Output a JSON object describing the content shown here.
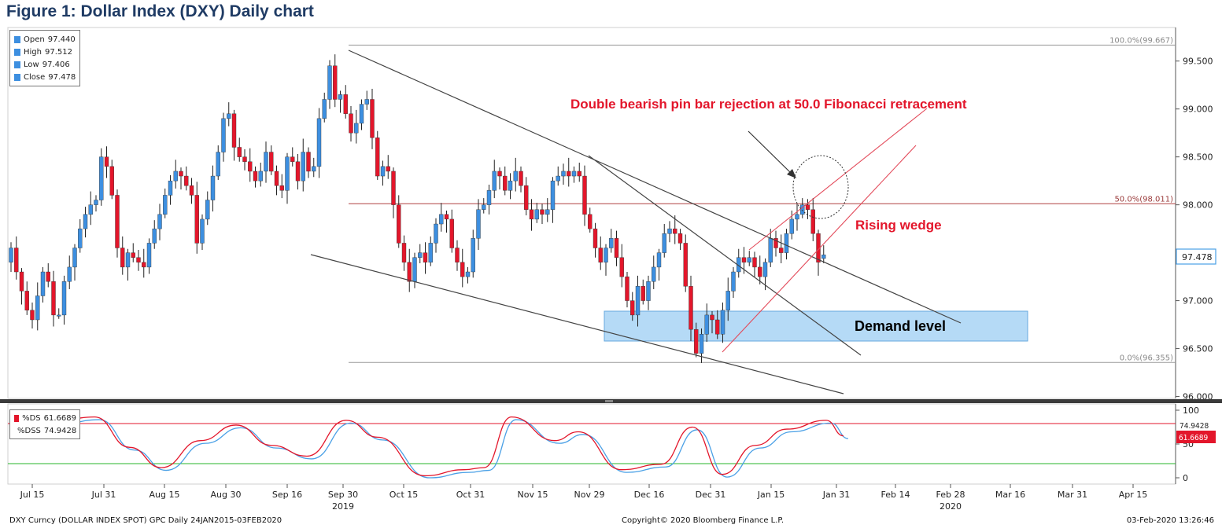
{
  "title": "Figure 1: Dollar Index (DXY) Daily chart",
  "ohlc_legend": [
    {
      "label": "Open",
      "value": "97.440"
    },
    {
      "label": "High",
      "value": "97.512"
    },
    {
      "label": "Low",
      "value": "97.406"
    },
    {
      "label": "Close",
      "value": "97.478"
    }
  ],
  "stoch_legend": [
    {
      "label": "%DS",
      "value": "61.6689",
      "color": "#e3162b"
    },
    {
      "label": "%DSS",
      "value": "74.9428",
      "color": "#4aa0e6"
    }
  ],
  "footer": {
    "left": "DXY Curncy (DOLLAR INDEX SPOT) GPC  Daily 24JAN2015-03FEB2020",
    "center": "Copyright© 2020 Bloomberg Finance L.P.",
    "right": "03-Feb-2020 13:26:46"
  },
  "colors": {
    "up": "#3d8fe0",
    "down": "#e3162b",
    "demand_zone": "#a9d4f5"
  },
  "chart_data": {
    "type": "candlestick",
    "x_ticks": [
      "Jul 15",
      "Jul 31",
      "Aug 15",
      "Aug 30",
      "Sep 16",
      "Sep 30",
      "Oct 15",
      "Oct 31",
      "Nov 15",
      "Nov 29",
      "Dec 16",
      "Dec 31",
      "Jan 15",
      "Jan 31",
      "Feb 14",
      "Feb 28",
      "Mar 16",
      "Mar 31",
      "Apr 15"
    ],
    "year_labels": [
      {
        "label": "2019",
        "at": "Sep 30"
      },
      {
        "label": "2020",
        "at": "Feb 28"
      }
    ],
    "y_ticks": [
      "99.500",
      "99.000",
      "98.500",
      "98.000",
      "97.500",
      "97.000",
      "96.500",
      "96.000"
    ],
    "y_range": [
      95.98,
      99.85
    ],
    "last_price": "97.478",
    "fib_levels": [
      {
        "label": "100.0%(99.667)",
        "value": 99.667
      },
      {
        "label": "50.0%(98.011)",
        "value": 98.011
      },
      {
        "label": "0.0%(96.355)",
        "value": 96.355
      }
    ],
    "candles_oc": [
      [
        97.4,
        97.55
      ],
      [
        97.55,
        97.3
      ],
      [
        97.3,
        97.1
      ],
      [
        97.1,
        96.9
      ],
      [
        96.9,
        96.8
      ],
      [
        96.8,
        97.05
      ],
      [
        97.05,
        97.3
      ],
      [
        97.3,
        97.2
      ],
      [
        97.2,
        96.85
      ],
      [
        96.85,
        96.85
      ],
      [
        96.85,
        97.2
      ],
      [
        97.2,
        97.35
      ],
      [
        97.35,
        97.55
      ],
      [
        97.55,
        97.75
      ],
      [
        97.75,
        97.9
      ],
      [
        97.9,
        98.0
      ],
      [
        98.0,
        98.05
      ],
      [
        98.05,
        98.5
      ],
      [
        98.5,
        98.4
      ],
      [
        98.4,
        98.1
      ],
      [
        98.1,
        97.55
      ],
      [
        97.55,
        97.35
      ],
      [
        97.35,
        97.5
      ],
      [
        97.5,
        97.45
      ],
      [
        97.45,
        97.4
      ],
      [
        97.4,
        97.35
      ],
      [
        97.35,
        97.6
      ],
      [
        97.6,
        97.75
      ],
      [
        97.75,
        97.9
      ],
      [
        97.9,
        98.1
      ],
      [
        98.1,
        98.25
      ],
      [
        98.25,
        98.35
      ],
      [
        98.35,
        98.3
      ],
      [
        98.3,
        98.2
      ],
      [
        98.2,
        98.1
      ],
      [
        98.1,
        97.6
      ],
      [
        97.6,
        97.85
      ],
      [
        97.85,
        98.05
      ],
      [
        98.05,
        98.3
      ],
      [
        98.3,
        98.55
      ],
      [
        98.55,
        98.9
      ],
      [
        98.9,
        98.95
      ],
      [
        98.95,
        98.6
      ],
      [
        98.6,
        98.5
      ],
      [
        98.5,
        98.45
      ],
      [
        98.45,
        98.35
      ],
      [
        98.35,
        98.25
      ],
      [
        98.25,
        98.35
      ],
      [
        98.35,
        98.55
      ],
      [
        98.55,
        98.35
      ],
      [
        98.35,
        98.2
      ],
      [
        98.2,
        98.15
      ],
      [
        98.15,
        98.5
      ],
      [
        98.5,
        98.45
      ],
      [
        98.45,
        98.25
      ],
      [
        98.25,
        98.55
      ],
      [
        98.55,
        98.35
      ],
      [
        98.35,
        98.4
      ],
      [
        98.4,
        98.9
      ],
      [
        98.9,
        99.1
      ],
      [
        99.1,
        99.45
      ],
      [
        99.45,
        99.1
      ],
      [
        99.1,
        99.15
      ],
      [
        99.15,
        98.95
      ],
      [
        98.95,
        98.75
      ],
      [
        98.75,
        98.85
      ],
      [
        98.85,
        99.05
      ],
      [
        99.05,
        99.1
      ],
      [
        99.1,
        98.7
      ],
      [
        98.7,
        98.3
      ],
      [
        98.3,
        98.4
      ],
      [
        98.4,
        98.35
      ],
      [
        98.35,
        98.0
      ],
      [
        98.0,
        97.6
      ],
      [
        97.6,
        97.4
      ],
      [
        97.4,
        97.2
      ],
      [
        97.2,
        97.45
      ],
      [
        97.45,
        97.5
      ],
      [
        97.5,
        97.4
      ],
      [
        97.4,
        97.6
      ],
      [
        97.6,
        97.8
      ],
      [
        97.8,
        97.9
      ],
      [
        97.9,
        97.85
      ],
      [
        97.85,
        97.55
      ],
      [
        97.55,
        97.4
      ],
      [
        97.4,
        97.25
      ],
      [
        97.25,
        97.3
      ],
      [
        97.3,
        97.65
      ],
      [
        97.65,
        97.95
      ],
      [
        97.95,
        98.0
      ],
      [
        98.0,
        98.15
      ],
      [
        98.15,
        98.35
      ],
      [
        98.35,
        98.3
      ],
      [
        98.3,
        98.15
      ],
      [
        98.15,
        98.25
      ],
      [
        98.25,
        98.35
      ],
      [
        98.35,
        98.2
      ],
      [
        98.2,
        97.95
      ],
      [
        97.95,
        97.85
      ],
      [
        97.85,
        97.95
      ],
      [
        97.95,
        97.9
      ],
      [
        97.9,
        97.95
      ],
      [
        97.95,
        98.25
      ],
      [
        98.25,
        98.3
      ],
      [
        98.3,
        98.35
      ],
      [
        98.35,
        98.3
      ],
      [
        98.3,
        98.35
      ],
      [
        98.35,
        98.3
      ],
      [
        98.3,
        97.9
      ],
      [
        97.9,
        97.75
      ],
      [
        97.75,
        97.55
      ],
      [
        97.55,
        97.4
      ],
      [
        97.4,
        97.55
      ],
      [
        97.55,
        97.65
      ],
      [
        97.65,
        97.45
      ],
      [
        97.45,
        97.25
      ],
      [
        97.25,
        97.0
      ],
      [
        97.0,
        96.85
      ],
      [
        96.85,
        97.15
      ],
      [
        97.15,
        97.0
      ],
      [
        97.0,
        97.2
      ],
      [
        97.2,
        97.35
      ],
      [
        97.35,
        97.5
      ],
      [
        97.5,
        97.7
      ],
      [
        97.7,
        97.75
      ],
      [
        97.75,
        97.7
      ],
      [
        97.7,
        97.6
      ],
      [
        97.6,
        97.15
      ],
      [
        97.15,
        96.7
      ],
      [
        96.7,
        96.45
      ],
      [
        96.45,
        96.65
      ],
      [
        96.65,
        96.85
      ],
      [
        96.85,
        96.8
      ],
      [
        96.8,
        96.65
      ],
      [
        96.65,
        96.9
      ],
      [
        96.9,
        97.1
      ],
      [
        97.1,
        97.3
      ],
      [
        97.3,
        97.45
      ],
      [
        97.45,
        97.4
      ],
      [
        97.4,
        97.45
      ],
      [
        97.45,
        97.35
      ],
      [
        97.35,
        97.25
      ],
      [
        97.25,
        97.4
      ],
      [
        97.4,
        97.65
      ],
      [
        97.65,
        97.55
      ],
      [
        97.55,
        97.5
      ],
      [
        97.5,
        97.7
      ],
      [
        97.7,
        97.85
      ],
      [
        97.85,
        97.9
      ],
      [
        97.9,
        98.0
      ],
      [
        98.0,
        97.95
      ],
      [
        97.95,
        97.7
      ],
      [
        97.7,
        97.4
      ],
      [
        97.44,
        97.478
      ]
    ],
    "stoch_lines": {
      "names": [
        "%DS",
        "%DSS"
      ],
      "overbought": 80,
      "oversold": 20,
      "ylim": [
        0,
        100
      ]
    }
  }
}
